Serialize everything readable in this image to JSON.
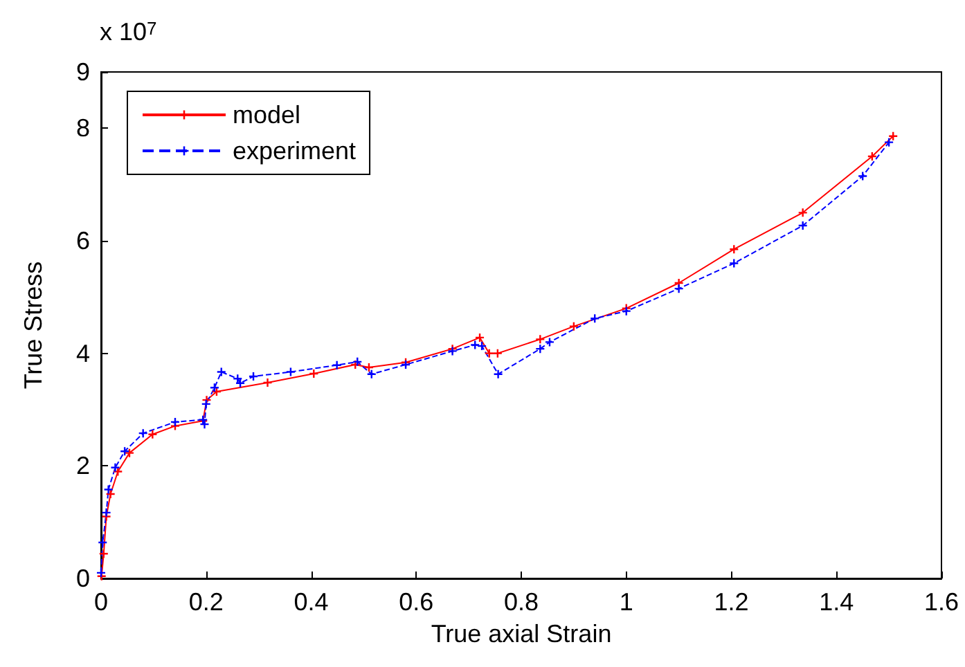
{
  "chart_data": {
    "type": "line",
    "xlabel": "True axial Strain",
    "ylabel": "True Stress",
    "annotations": [
      "x 10$^{7}$"
    ],
    "xlim": [
      0,
      1.6
    ],
    "xticks": [
      0,
      0.2,
      0.4,
      0.6,
      0.8,
      1,
      1.2,
      1.4,
      1.6
    ],
    "ylim": [
      0,
      9
    ],
    "yticks": [
      0,
      2,
      4,
      6,
      8,
      9
    ],
    "grid": false,
    "legend": "top left",
    "marker": "cross",
    "series": [
      {
        "name": "model",
        "color": "#ff0000",
        "line_style": "solid",
        "x": [
          0.001,
          0.005,
          0.01,
          0.018,
          0.032,
          0.054,
          0.098,
          0.141,
          0.194,
          0.201,
          0.22,
          0.317,
          0.405,
          0.484,
          0.51,
          0.58,
          0.669,
          0.721,
          0.739,
          0.755,
          0.836,
          0.9,
          1.0,
          1.1,
          1.205,
          1.336,
          1.468,
          1.508
        ],
        "values": [
          0.04,
          0.44,
          1.1,
          1.5,
          1.9,
          2.23,
          2.56,
          2.71,
          2.8,
          3.17,
          3.32,
          3.48,
          3.64,
          3.8,
          3.75,
          3.84,
          4.08,
          4.28,
          4.0,
          4.0,
          4.25,
          4.48,
          4.8,
          5.25,
          5.85,
          6.5,
          7.5,
          7.86
        ]
      },
      {
        "name": "experiment",
        "color": "#0000ff",
        "line_style": "dashed",
        "x": [
          0.0,
          0.003,
          0.01,
          0.014,
          0.027,
          0.045,
          0.08,
          0.141,
          0.194,
          0.197,
          0.2,
          0.216,
          0.229,
          0.26,
          0.265,
          0.29,
          0.361,
          0.449,
          0.488,
          0.515,
          0.58,
          0.669,
          0.712,
          0.725,
          0.756,
          0.836,
          0.854,
          0.94,
          1.0,
          1.1,
          1.205,
          1.336,
          1.45,
          1.5
        ],
        "values": [
          0.1,
          0.64,
          1.17,
          1.58,
          1.97,
          2.26,
          2.58,
          2.78,
          2.82,
          2.74,
          3.1,
          3.39,
          3.67,
          3.55,
          3.47,
          3.59,
          3.67,
          3.79,
          3.85,
          3.63,
          3.8,
          4.04,
          4.15,
          4.13,
          3.63,
          4.08,
          4.2,
          4.62,
          4.75,
          5.15,
          5.6,
          6.27,
          7.15,
          7.75
        ]
      }
    ]
  }
}
